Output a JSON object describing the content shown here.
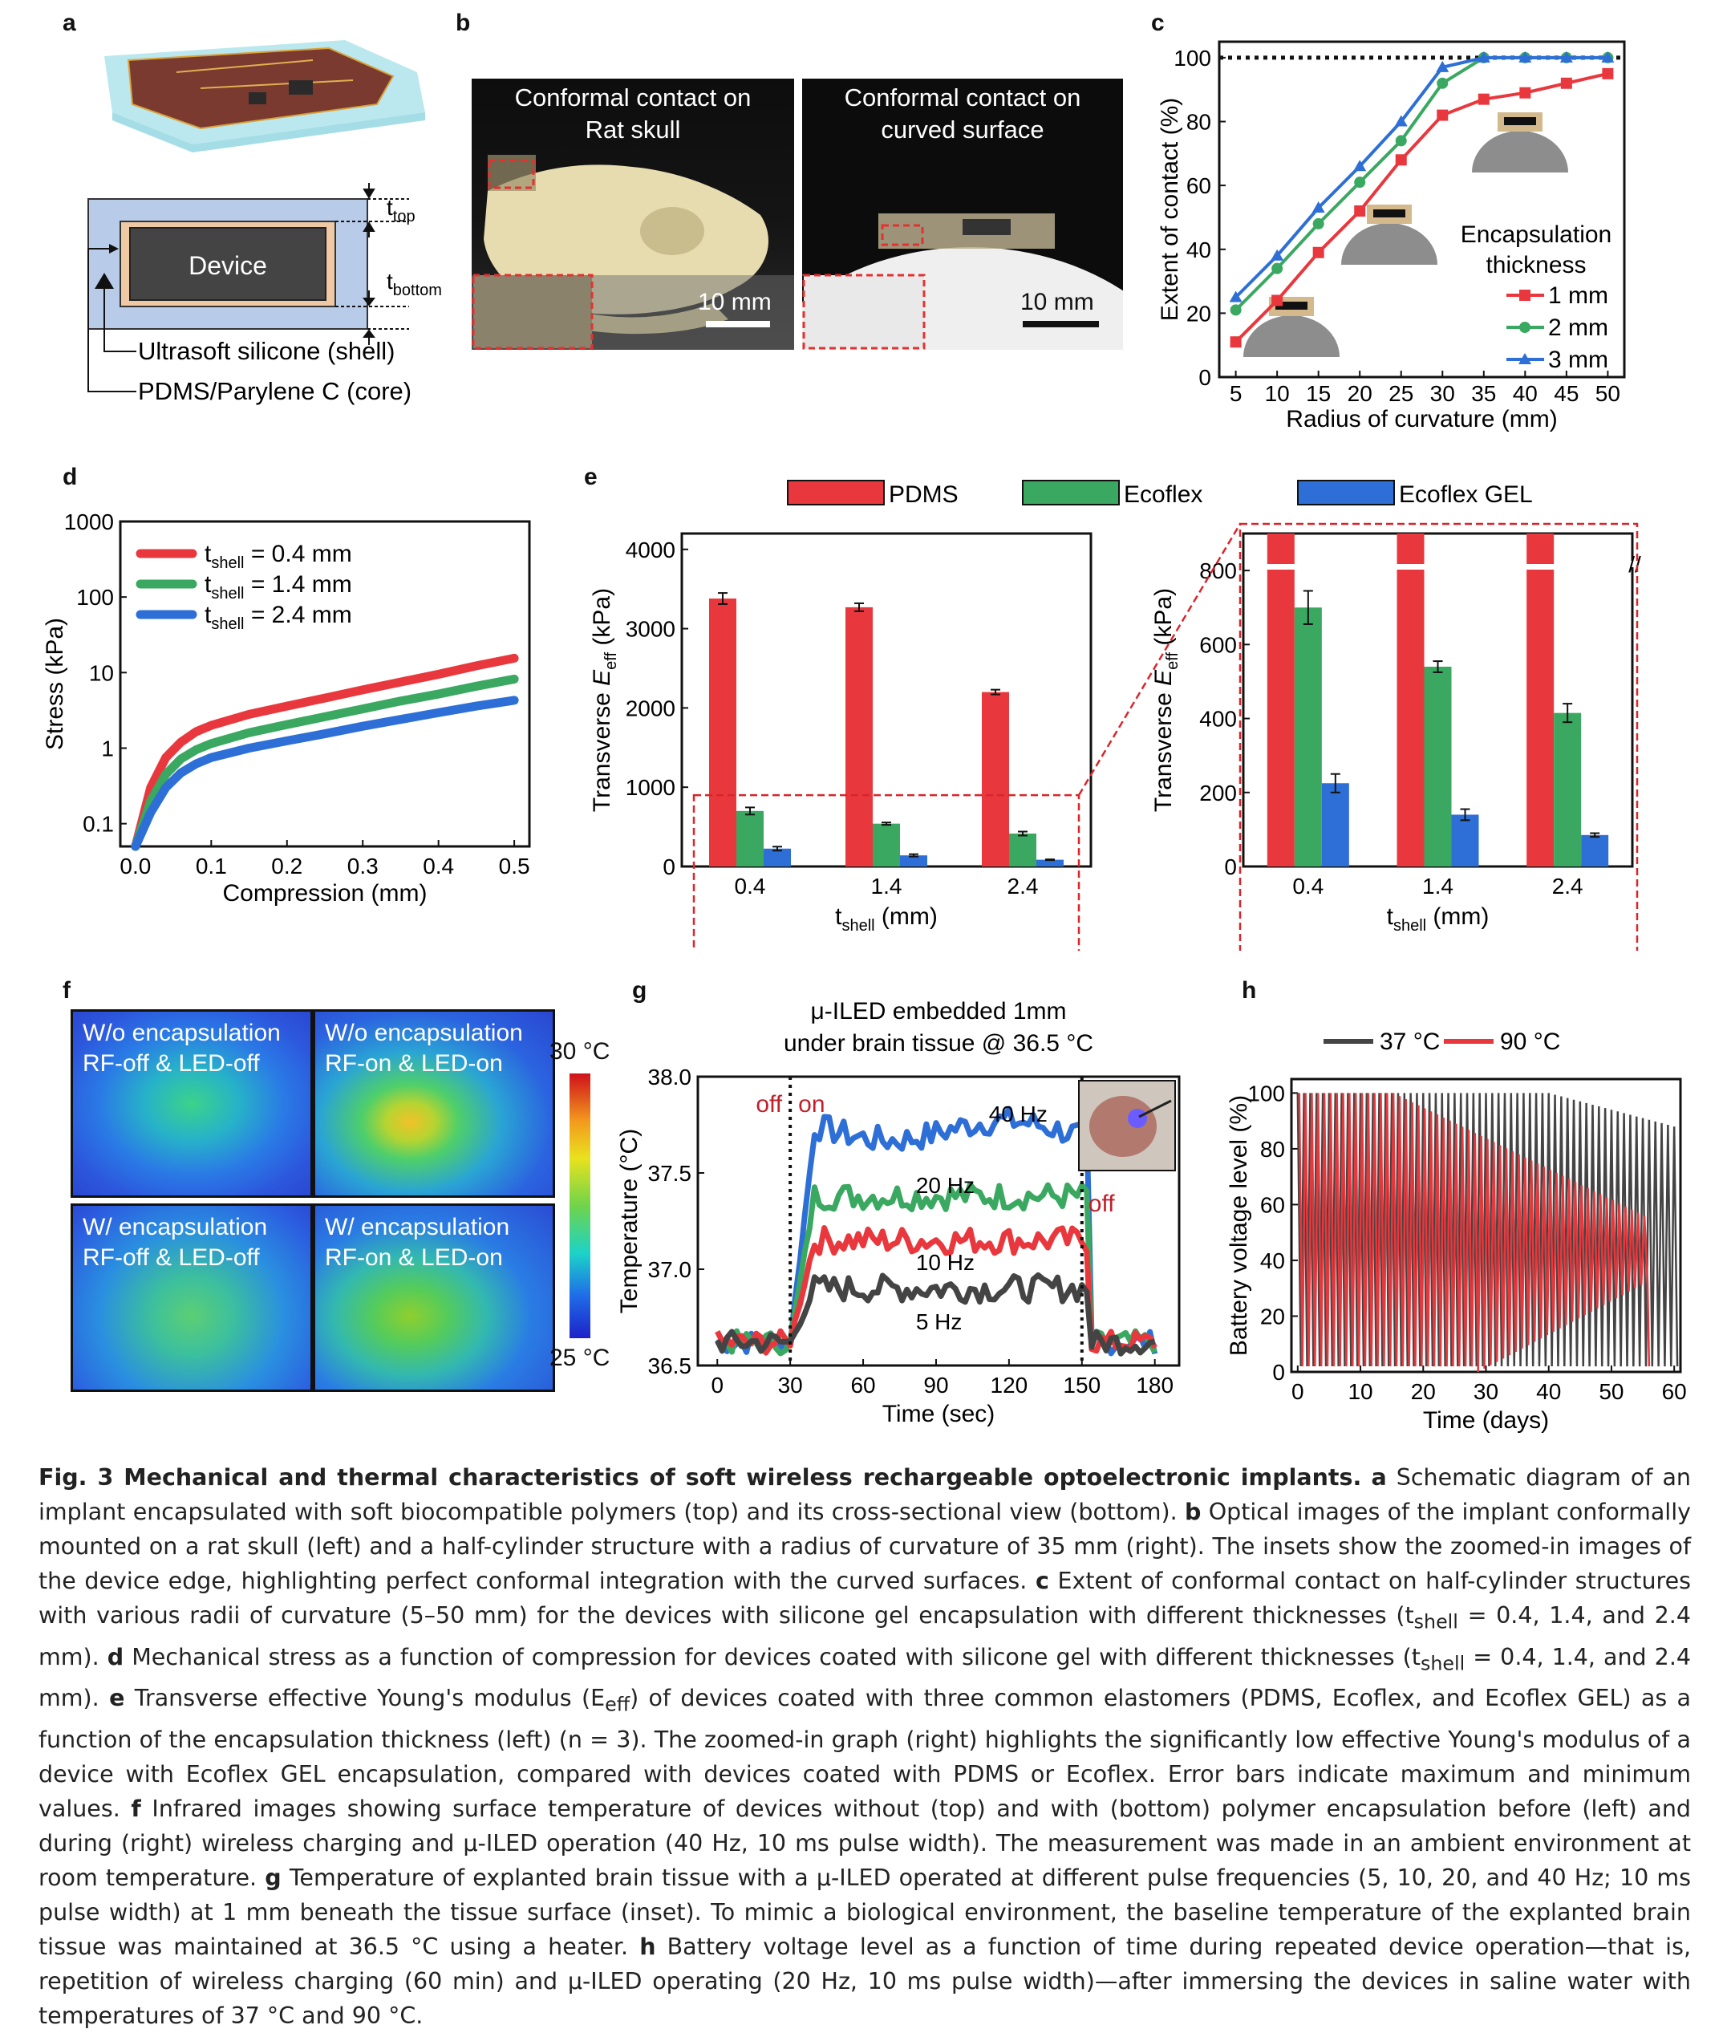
{
  "panel_labels": {
    "a": "a",
    "b": "b",
    "c": "c",
    "d": "d",
    "e": "e",
    "f": "f",
    "g": "g",
    "h": "h"
  },
  "panel_a": {
    "device_label": "Device",
    "t_top": "t",
    "t_top_sub": "top",
    "t_bottom": "t",
    "t_bottom_sub": "bottom",
    "shell_label": "Ultrasoft silicone (shell)",
    "core_label": "PDMS/Parylene C (core)"
  },
  "panel_b": {
    "left_title_1": "Conformal contact on",
    "left_title_2": "Rat skull",
    "right_title_1": "Conformal contact on",
    "right_title_2": "curved surface",
    "scale_left": "10 mm",
    "scale_right": "10 mm"
  },
  "panel_f": {
    "tl_1": "W/o encapsulation",
    "tl_2": "RF-off & LED-off",
    "tr_1": "W/o encapsulation",
    "tr_2": "RF-on & LED-on",
    "bl_1": "W/ encapsulation",
    "bl_2": "RF-off & LED-off",
    "br_1": "W/ encapsulation",
    "br_2": "RF-on & LED-on",
    "scale_max": "30 °C",
    "scale_min": "25 °C"
  },
  "chart_data": [
    {
      "id": "c",
      "type": "line",
      "xlabel": "Radius of curvature (mm)",
      "ylabel": "Extent of contact (%)",
      "xlim": [
        3,
        52
      ],
      "ylim": [
        0,
        105
      ],
      "xticks": [
        5,
        10,
        15,
        20,
        25,
        30,
        35,
        40,
        45,
        50
      ],
      "yticks": [
        0,
        20,
        40,
        60,
        80,
        100
      ],
      "legend_title_1": "Encapsulation",
      "legend_title_2": "thickness",
      "x": [
        5,
        10,
        15,
        20,
        25,
        30,
        35,
        40,
        45,
        50
      ],
      "series": [
        {
          "name": "1 mm",
          "color": "#e8383d",
          "marker": "square",
          "values": [
            11,
            24,
            39,
            52,
            68,
            82,
            87,
            89,
            92,
            95
          ]
        },
        {
          "name": "2 mm",
          "color": "#3aa860",
          "marker": "circle",
          "values": [
            21,
            34,
            48,
            61,
            74,
            92,
            100,
            100,
            100,
            100
          ]
        },
        {
          "name": "3 mm",
          "color": "#2d6fd6",
          "marker": "triangle",
          "values": [
            25,
            38,
            53,
            66,
            80,
            97,
            100,
            100,
            100,
            100
          ]
        }
      ],
      "reference_line": 100
    },
    {
      "id": "d",
      "type": "line",
      "xlabel": "Compression (mm)",
      "ylabel": "Stress (kPa)",
      "xlim": [
        -0.02,
        0.52
      ],
      "ylog": true,
      "ylim": [
        0.05,
        1000
      ],
      "xticks": [
        "0.0",
        "0.1",
        "0.2",
        "0.3",
        "0.4",
        "0.5"
      ],
      "yticks": [
        "0.1",
        "1",
        "10",
        "100",
        "1000"
      ],
      "series": [
        {
          "name_sub": "shell",
          "name_value": "= 0.4 mm",
          "color": "#e8383d",
          "x": [
            0.0,
            0.02,
            0.04,
            0.06,
            0.08,
            0.1,
            0.15,
            0.2,
            0.25,
            0.3,
            0.35,
            0.4,
            0.45,
            0.5
          ],
          "values": [
            0.05,
            0.3,
            0.75,
            1.2,
            1.65,
            2.0,
            2.8,
            3.6,
            4.6,
            5.9,
            7.5,
            9.5,
            12.3,
            15.5
          ]
        },
        {
          "name_sub": "shell",
          "name_value": "= 1.4 mm",
          "color": "#3aa860",
          "x": [
            0.0,
            0.02,
            0.04,
            0.06,
            0.08,
            0.1,
            0.15,
            0.2,
            0.25,
            0.3,
            0.35,
            0.4,
            0.45,
            0.5
          ],
          "values": [
            0.05,
            0.2,
            0.45,
            0.72,
            0.95,
            1.15,
            1.6,
            2.05,
            2.6,
            3.3,
            4.2,
            5.2,
            6.6,
            8.2
          ]
        },
        {
          "name_sub": "shell",
          "name_value": "= 2.4 mm",
          "color": "#2d6fd6",
          "x": [
            0.0,
            0.02,
            0.04,
            0.06,
            0.08,
            0.1,
            0.15,
            0.2,
            0.25,
            0.3,
            0.35,
            0.4,
            0.45,
            0.5
          ],
          "values": [
            0.05,
            0.14,
            0.3,
            0.47,
            0.62,
            0.75,
            1.0,
            1.25,
            1.55,
            1.95,
            2.4,
            2.95,
            3.6,
            4.3
          ]
        }
      ],
      "legend_prefix": "t"
    },
    {
      "id": "e",
      "type": "bar",
      "ylabel_1": "Transverse ",
      "ylabel_E": "E",
      "ylabel_sub": "eff",
      "ylabel_2": " (kPa)",
      "xlabel": "t",
      "xlabel_sub": "shell",
      "xlabel_unit": " (mm)",
      "categories": [
        "0.4",
        "1.4",
        "2.4"
      ],
      "series": [
        {
          "name": "PDMS",
          "color": "#e8383d",
          "values": [
            3380,
            3270,
            2200
          ],
          "err": [
            70,
            50,
            30
          ]
        },
        {
          "name": "Ecoflex",
          "color": "#3aa860",
          "values": [
            700,
            540,
            415
          ],
          "err": [
            45,
            15,
            25
          ]
        },
        {
          "name": "Ecoflex GEL",
          "color": "#2d6fd6",
          "values": [
            225,
            140,
            85
          ],
          "err": [
            25,
            15,
            5
          ]
        }
      ],
      "left_ylim": [
        0,
        4200
      ],
      "left_yticks": [
        0,
        1000,
        2000,
        3000,
        4000
      ],
      "right_ylim": [
        0,
        900
      ],
      "right_yticks": [
        0,
        200,
        400,
        600,
        800
      ]
    },
    {
      "id": "g",
      "type": "line",
      "title_1": "μ-ILED embedded 1mm",
      "title_2": "under brain tissue @ 36.5 °C",
      "xlabel": "Time (sec)",
      "ylabel": "Temperature (°C)",
      "xlim": [
        -8,
        190
      ],
      "ylim": [
        36.5,
        38.0
      ],
      "xticks": [
        0,
        30,
        60,
        90,
        120,
        150,
        180
      ],
      "yticks": [
        "36.5",
        "37.0",
        "37.5",
        "38.0"
      ],
      "annotations": {
        "off_left": "off",
        "on": "on",
        "off_right": "off"
      },
      "markers_x": [
        30,
        150
      ],
      "series": [
        {
          "name": "40 Hz",
          "color": "#2d6fd6",
          "plateau": 37.72
        },
        {
          "name": "20 Hz",
          "color": "#3aa860",
          "plateau": 37.38
        },
        {
          "name": "10 Hz",
          "color": "#e8383d",
          "plateau": 37.15
        },
        {
          "name": "5 Hz",
          "color": "#444444",
          "plateau": 36.9
        }
      ],
      "baseline": 36.62
    },
    {
      "id": "h",
      "type": "line",
      "xlabel": "Time (days)",
      "ylabel": "Battery voltage level (%)",
      "xlim": [
        -1,
        61
      ],
      "ylim": [
        0,
        105
      ],
      "xticks": [
        0,
        10,
        20,
        30,
        40,
        50,
        60
      ],
      "yticks": [
        0,
        20,
        40,
        60,
        80,
        100
      ],
      "series": [
        {
          "name": "37 °C",
          "color": "#444444",
          "cycles_end_day": 60
        },
        {
          "name": "90 °C",
          "color": "#e8383d",
          "cycles_end_day": 55
        }
      ]
    }
  ],
  "caption": {
    "title": "Fig. 3 Mechanical and thermal characteristics of soft wireless rechargeable optoelectronic implants.",
    "a_lbl": "a",
    "a": " Schematic diagram of an implant encapsulated with soft biocompatible polymers (top) and its cross-sectional view (bottom). ",
    "b_lbl": "b",
    "b": " Optical images of the implant conformally mounted on a rat skull (left) and a half-cylinder structure with a radius of curvature of 35 mm (right). The insets show the zoomed-in images of the device edge, highlighting perfect conformal integration with the curved surfaces. ",
    "c_lbl": "c",
    "c": " Extent of conformal contact on half-cylinder structures with various radii of curvature (5–50 mm) for the devices with silicone gel encapsulation with different thicknesses (t",
    "c_sub": "shell",
    "c2": " = 0.4, 1.4, and 2.4 mm). ",
    "d_lbl": "d",
    "d": " Mechanical stress as a function of compression for devices coated with silicone gel with different thicknesses (t",
    "d_sub": "shell",
    "d2": " = 0.4, 1.4, and 2.4 mm). ",
    "e_lbl": "e",
    "e": " Transverse effective Young's modulus (E",
    "e_sub": "eff",
    "e2": ") of devices coated with three common elastomers (PDMS, Ecoflex, and Ecoflex GEL) as a function of the encapsulation thickness (left) (n = 3). The zoomed-in graph (right) highlights the significantly low effective Young's modulus of a device with Ecoflex GEL encapsulation, compared with devices coated with PDMS or Ecoflex. Error bars indicate maximum and minimum values. ",
    "f_lbl": "f",
    "f": " Infrared images showing surface temperature of devices without (top) and with (bottom) polymer encapsulation before (left) and during (right) wireless charging and μ-ILED operation (40 Hz, 10 ms pulse width). The measurement was made in an ambient environment at room temperature. ",
    "g_lbl": "g",
    "g": " Temperature of explanted brain tissue with a μ-ILED operated at different pulse frequencies (5, 10, 20, and 40 Hz; 10 ms pulse width) at 1 mm beneath the tissue surface (inset). To mimic a biological environment, the baseline temperature of the explanted brain tissue was maintained at 36.5 °C using a heater. ",
    "h_lbl": "h",
    "h": " Battery voltage level as a function of time during repeated device operation—that is, repetition of wireless charging (60 min) and μ-ILED operating (20 Hz, 10 ms pulse width)—after immersing the devices in saline water with temperatures of 37 °C and 90 °C."
  }
}
